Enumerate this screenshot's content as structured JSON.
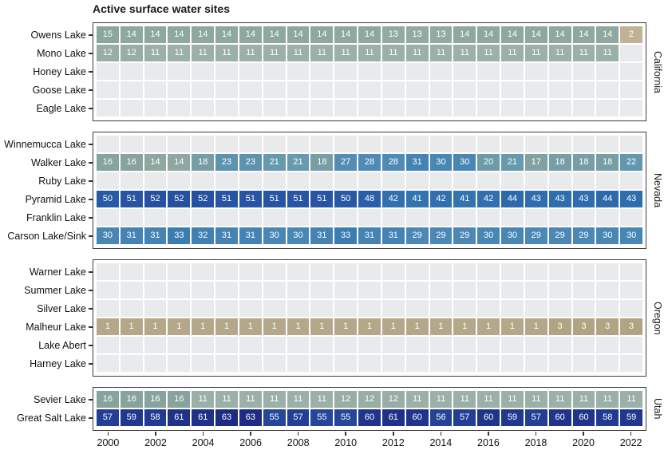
{
  "title": "Active surface water sites",
  "chart_data": {
    "type": "heatmap",
    "x_label": "",
    "y_label": "",
    "x": [
      2000,
      2001,
      2002,
      2003,
      2004,
      2005,
      2006,
      2007,
      2008,
      2009,
      2010,
      2011,
      2012,
      2013,
      2014,
      2015,
      2016,
      2017,
      2018,
      2019,
      2020,
      2021,
      2022
    ],
    "x_tick_years": [
      2000,
      2002,
      2004,
      2006,
      2008,
      2010,
      2012,
      2014,
      2016,
      2018,
      2020,
      2022
    ],
    "legend_position": "none",
    "grid": false,
    "panels": [
      {
        "state": "California",
        "rows": [
          {
            "lake": "Owens Lake",
            "values": [
              15,
              14,
              14,
              14,
              14,
              14,
              14,
              14,
              14,
              14,
              14,
              14,
              13,
              13,
              13,
              14,
              14,
              14,
              14,
              14,
              14,
              14,
              2
            ]
          },
          {
            "lake": "Mono Lake",
            "values": [
              12,
              12,
              11,
              11,
              11,
              11,
              11,
              11,
              11,
              11,
              11,
              11,
              11,
              11,
              11,
              11,
              11,
              11,
              11,
              11,
              11,
              11,
              null
            ]
          },
          {
            "lake": "Honey Lake",
            "values": null
          },
          {
            "lake": "Goose Lake",
            "values": null
          },
          {
            "lake": "Eagle Lake",
            "values": null
          }
        ]
      },
      {
        "state": "Nevada",
        "rows": [
          {
            "lake": "Winnemucca Lake",
            "values": null
          },
          {
            "lake": "Walker Lake",
            "values": [
              16,
              16,
              14,
              14,
              18,
              23,
              23,
              21,
              21,
              18,
              27,
              28,
              28,
              31,
              30,
              30,
              20,
              21,
              17,
              18,
              18,
              18,
              22
            ]
          },
          {
            "lake": "Ruby Lake",
            "values": null
          },
          {
            "lake": "Pyramid Lake",
            "values": [
              50,
              51,
              52,
              52,
              52,
              51,
              51,
              51,
              51,
              51,
              50,
              48,
              42,
              41,
              42,
              41,
              42,
              44,
              43,
              43,
              43,
              44,
              43
            ]
          },
          {
            "lake": "Franklin Lake",
            "values": null
          },
          {
            "lake": "Carson Lake/Sink",
            "values": [
              30,
              31,
              31,
              33,
              32,
              31,
              31,
              30,
              30,
              31,
              33,
              31,
              31,
              29,
              29,
              29,
              30,
              30,
              29,
              29,
              29,
              30,
              30
            ]
          }
        ]
      },
      {
        "state": "Oregon",
        "rows": [
          {
            "lake": "Warner Lake",
            "values": null
          },
          {
            "lake": "Summer Lake",
            "values": null
          },
          {
            "lake": "Silver Lake",
            "values": null
          },
          {
            "lake": "Malheur Lake",
            "values": [
              1,
              1,
              1,
              1,
              1,
              1,
              1,
              1,
              1,
              1,
              1,
              1,
              1,
              1,
              1,
              1,
              1,
              1,
              1,
              3,
              3,
              3,
              3
            ]
          },
          {
            "lake": "Lake Abert",
            "values": null
          },
          {
            "lake": "Harney Lake",
            "values": null
          }
        ]
      },
      {
        "state": "Utah",
        "rows": [
          {
            "lake": "Sevier Lake",
            "values": [
              16,
              16,
              16,
              16,
              11,
              11,
              11,
              11,
              11,
              11,
              12,
              12,
              12,
              11,
              11,
              11,
              11,
              11,
              11,
              11,
              11,
              11,
              11
            ]
          },
          {
            "lake": "Great Salt Lake",
            "values": [
              57,
              59,
              58,
              61,
              61,
              63,
              63,
              55,
              57,
              55,
              55,
              60,
              61,
              60,
              56,
              57,
              60,
              59,
              57,
              60,
              60,
              58,
              59
            ]
          }
        ]
      }
    ],
    "color_scale": {
      "description": "value-to-fill gradient, tan (low) through sage green and teal to navy (high)",
      "stops": [
        [
          1,
          "#b5a88a"
        ],
        [
          2,
          "#c0b294"
        ],
        [
          3,
          "#b1a483"
        ],
        [
          11,
          "#9bb0a8"
        ],
        [
          14,
          "#8ea7a0"
        ],
        [
          16,
          "#87a39d"
        ],
        [
          18,
          "#789ea5"
        ],
        [
          21,
          "#679aad"
        ],
        [
          23,
          "#5d93ae"
        ],
        [
          28,
          "#508bb6"
        ],
        [
          31,
          "#4483b3"
        ],
        [
          33,
          "#3c7db1"
        ],
        [
          41,
          "#3273b0"
        ],
        [
          44,
          "#2c6aad"
        ],
        [
          48,
          "#295fa8"
        ],
        [
          50,
          "#2859a5"
        ],
        [
          52,
          "#2651a1"
        ],
        [
          55,
          "#254699"
        ],
        [
          57,
          "#233f95"
        ],
        [
          60,
          "#20348c"
        ],
        [
          63,
          "#1d2b84"
        ]
      ],
      "empty_cell": "#e9eaeb",
      "cell_text": "#ffffff",
      "panel_border": "#3d3d3d",
      "axis_text": "#111111",
      "tick_color": "#333333"
    }
  }
}
